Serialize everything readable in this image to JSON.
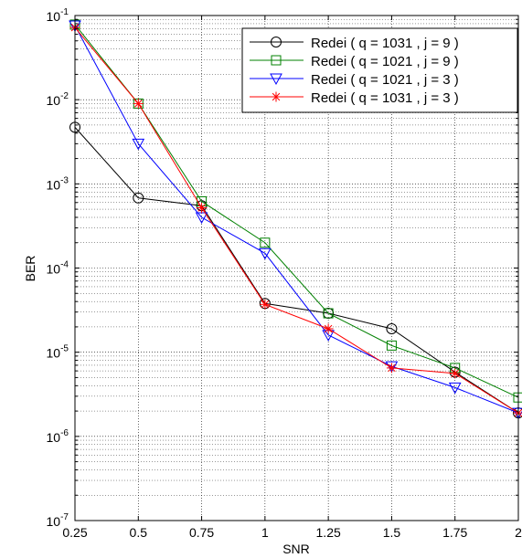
{
  "chart_data": {
    "type": "line",
    "title": "",
    "xlabel": "SNR",
    "ylabel": "BER",
    "y_scale": "log",
    "xlim": [
      0.25,
      2
    ],
    "ylim": [
      1e-07,
      0.1
    ],
    "grid": true,
    "legend_placement": "top-right",
    "x_ticks": [
      "0.25",
      "0.5",
      "0.75",
      "1",
      "1.25",
      "1.5",
      "1.75",
      "2"
    ],
    "y_ticks": [
      {
        "base": "10",
        "exp": "-7"
      },
      {
        "base": "10",
        "exp": "-6"
      },
      {
        "base": "10",
        "exp": "-5"
      },
      {
        "base": "10",
        "exp": "-4"
      },
      {
        "base": "10",
        "exp": "-3"
      },
      {
        "base": "10",
        "exp": "-2"
      },
      {
        "base": "10",
        "exp": "-1"
      }
    ],
    "x": [
      0.25,
      0.5,
      0.75,
      1,
      1.25,
      1.5,
      1.75,
      2
    ],
    "series": [
      {
        "name": "Redei ( q = 1031 , j = 9 )",
        "color": "#000000",
        "marker": "circle",
        "values": [
          0.0047,
          0.00068,
          0.00055,
          3.8e-05,
          2.9e-05,
          1.9e-05,
          5.8e-06,
          1.9e-06
        ]
      },
      {
        "name": "Redei ( q = 1021 , j = 9 )",
        "color": "#008000",
        "marker": "square",
        "values": [
          0.078,
          0.009,
          0.00062,
          0.0002,
          2.9e-05,
          1.2e-05,
          6.5e-06,
          2.9e-06
        ]
      },
      {
        "name": "Redei ( q = 1021 , j = 3 )",
        "color": "#0000ff",
        "marker": "triangle-down",
        "values": [
          0.076,
          0.003,
          0.0004,
          0.00015,
          1.6e-05,
          6.8e-06,
          3.8e-06,
          1.9e-06
        ]
      },
      {
        "name": "Redei ( q = 1031 , j = 3 )",
        "color": "#ff0000",
        "marker": "asterisk",
        "values": [
          0.072,
          0.009,
          0.00052,
          3.7e-05,
          1.9e-05,
          6.5e-06,
          5.6e-06,
          1.9e-06
        ]
      }
    ]
  }
}
